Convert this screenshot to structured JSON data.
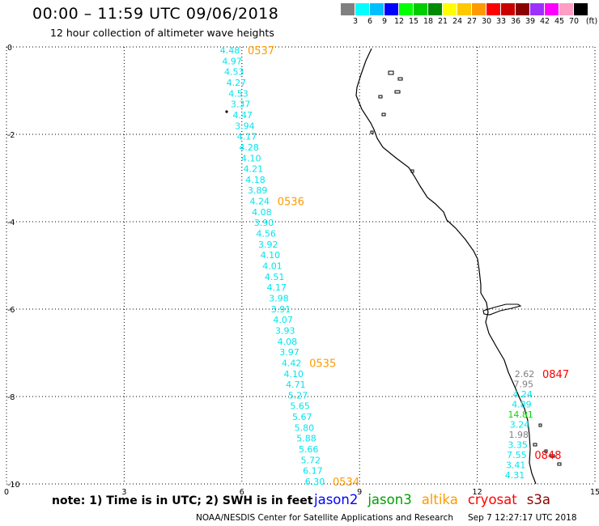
{
  "header": {
    "title": "00:00 – 11:59 UTC 09/06/2018",
    "subtitle": "12 hour collection of altimeter wave heights"
  },
  "colorbar": {
    "unit": "(ft)",
    "colors": [
      "#808080",
      "#00ffff",
      "#00bfff",
      "#0000ff",
      "#00ff00",
      "#00cd00",
      "#008b00",
      "#ffff00",
      "#ffc800",
      "#ff9900",
      "#ff0000",
      "#c80000",
      "#8b0000",
      "#9b30ff",
      "#ff00ff",
      "#ff9ec4",
      "#000000"
    ],
    "labels": [
      "3",
      "6",
      "9",
      "12",
      "15",
      "18",
      "21",
      "24",
      "27",
      "30",
      "33",
      "36",
      "39",
      "42",
      "45",
      "70"
    ]
  },
  "axes": {
    "x_ticks": [
      "0",
      "3",
      "6",
      "9",
      "12",
      "15"
    ],
    "y_ticks": [
      "0",
      "-2",
      "-4",
      "-6",
      "-8",
      "-10"
    ],
    "x_range": [
      0,
      15
    ],
    "y_range": [
      -10,
      0
    ],
    "grid": "dotted"
  },
  "map": {
    "pass_left": {
      "color": "#00e5ee",
      "values": [
        "4.48",
        "4.97",
        "4.53",
        "4.27",
        "4.53",
        "3.37",
        "4.47",
        "3.94",
        "4.17",
        "4.28",
        "4.10",
        "4.21",
        "4.18",
        "3.89",
        "4.24",
        "4.08",
        "3.90",
        "4.56",
        "3.92",
        "4.10",
        "4.01",
        "4.51",
        "4.17",
        "3.98",
        "3.91",
        "4.07",
        "3.93",
        "4.08",
        "3.97",
        "4.42",
        "4.10",
        "4.71",
        "5.27",
        "5.65",
        "5.67",
        "5.80",
        "5.88",
        "5.66",
        "5.72",
        "6.17",
        "6.30"
      ]
    },
    "pass_left_times": {
      "color": "#ff9900",
      "labels": [
        {
          "text": "0537",
          "near_index": 0
        },
        {
          "text": "0536",
          "near_index": 14
        },
        {
          "text": "0535",
          "near_index": 29
        },
        {
          "text": "0534",
          "near_index": 40
        }
      ]
    },
    "pass_right": {
      "values": [
        {
          "v": "2.62",
          "color": "#808080"
        },
        {
          "v": "7.95",
          "color": "#808080"
        },
        {
          "v": "4.24",
          "color": "#00e5ee"
        },
        {
          "v": "4.89",
          "color": "#00e5ee"
        },
        {
          "v": "14.81",
          "color": "#00dd00"
        },
        {
          "v": "3.24",
          "color": "#00e5ee"
        },
        {
          "v": "1.98",
          "color": "#808080"
        },
        {
          "v": "3.35",
          "color": "#00e5ee"
        },
        {
          "v": "7.55",
          "color": "#00e5ee"
        },
        {
          "v": "3.41",
          "color": "#00e5ee"
        },
        {
          "v": "4.31",
          "color": "#00e5ee"
        }
      ]
    },
    "pass_right_times": {
      "color": "#ff0000",
      "labels": [
        {
          "text": "0847",
          "near_index": 0
        },
        {
          "text": "0848",
          "near_index": 8
        }
      ]
    }
  },
  "notes": {
    "text": "note: 1) Time is in UTC; 2) SWH is in feet"
  },
  "missions": [
    {
      "name": "jason2",
      "color": "#0000ff"
    },
    {
      "name": "jason3",
      "color": "#00a000"
    },
    {
      "name": "altika",
      "color": "#ff9900"
    },
    {
      "name": "cryosat",
      "color": "#ff0000"
    },
    {
      "name": "s3a",
      "color": "#8b0000"
    }
  ],
  "footer": {
    "credit": "NOAA/NESDIS Center for Satellite Applications and Research",
    "timestamp": "Sep  7 12:27:17 UTC 2018"
  }
}
